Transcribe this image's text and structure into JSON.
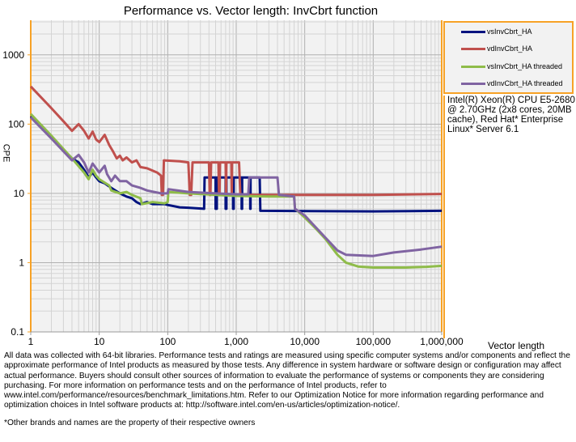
{
  "chart_data": {
    "type": "line",
    "title": "Performance vs. Vector length: InvCbrt function",
    "xlabel": "Vector length",
    "ylabel": "CPE",
    "xscale": "log",
    "yscale": "log",
    "xlim": [
      1,
      1000000
    ],
    "ylim": [
      0.1,
      3162
    ],
    "xticks": [
      {
        "v": 1,
        "label": "1"
      },
      {
        "v": 10,
        "label": "10"
      },
      {
        "v": 100,
        "label": "100"
      },
      {
        "v": 1000,
        "label": "1,000"
      },
      {
        "v": 10000,
        "label": "10,000"
      },
      {
        "v": 100000,
        "label": "100,000"
      },
      {
        "v": 1000000,
        "label": "1,000,000"
      }
    ],
    "yticks": [
      {
        "v": 0.1,
        "label": "0.1"
      },
      {
        "v": 1,
        "label": "1"
      },
      {
        "v": 10,
        "label": "10"
      },
      {
        "v": 100,
        "label": "100"
      },
      {
        "v": 1000,
        "label": "1000"
      }
    ],
    "grid": true,
    "legend_placement": "right",
    "series": [
      {
        "name": "vsInvCbrt_HA",
        "color": "#00137f",
        "points": [
          [
            1,
            130
          ],
          [
            2,
            65
          ],
          [
            4,
            32
          ],
          [
            5,
            28
          ],
          [
            6,
            22
          ],
          [
            7,
            17
          ],
          [
            8,
            20
          ],
          [
            9,
            17
          ],
          [
            10,
            15
          ],
          [
            12,
            14
          ],
          [
            15,
            12
          ],
          [
            20,
            10
          ],
          [
            25,
            9
          ],
          [
            30,
            8.5
          ],
          [
            35,
            7.5
          ],
          [
            40,
            7
          ],
          [
            50,
            7.5
          ],
          [
            60,
            7
          ],
          [
            90,
            7
          ],
          [
            100,
            6.8
          ],
          [
            150,
            6.3
          ],
          [
            200,
            6.2
          ],
          [
            340,
            6
          ],
          [
            345,
            17
          ],
          [
            500,
            17
          ],
          [
            500,
            6
          ],
          [
            520,
            6
          ],
          [
            520,
            17
          ],
          [
            700,
            17
          ],
          [
            700,
            6
          ],
          [
            720,
            6
          ],
          [
            720,
            17
          ],
          [
            900,
            17
          ],
          [
            900,
            6
          ],
          [
            920,
            6
          ],
          [
            920,
            17
          ],
          [
            1200,
            17
          ],
          [
            1200,
            6
          ],
          [
            1220,
            6
          ],
          [
            1220,
            17
          ],
          [
            1600,
            17
          ],
          [
            1600,
            6
          ],
          [
            1620,
            6
          ],
          [
            1620,
            17
          ],
          [
            2200,
            17
          ],
          [
            2250,
            5.6
          ],
          [
            100000,
            5.5
          ],
          [
            1000000,
            5.6
          ]
        ]
      },
      {
        "name": "vdInvCbrt_HA",
        "color": "#c0504d",
        "points": [
          [
            1,
            350
          ],
          [
            2,
            170
          ],
          [
            3,
            110
          ],
          [
            4,
            80
          ],
          [
            5,
            100
          ],
          [
            6,
            80
          ],
          [
            7,
            62
          ],
          [
            8,
            78
          ],
          [
            9,
            60
          ],
          [
            10,
            55
          ],
          [
            12,
            70
          ],
          [
            14,
            50
          ],
          [
            16,
            40
          ],
          [
            18,
            32
          ],
          [
            20,
            35
          ],
          [
            22,
            30
          ],
          [
            25,
            33
          ],
          [
            30,
            28
          ],
          [
            35,
            30
          ],
          [
            40,
            24
          ],
          [
            50,
            23
          ],
          [
            70,
            20
          ],
          [
            80,
            18
          ],
          [
            82,
            9.5
          ],
          [
            85,
            9.5
          ],
          [
            88,
            30
          ],
          [
            150,
            29
          ],
          [
            200,
            28
          ],
          [
            210,
            9.5
          ],
          [
            220,
            9.5
          ],
          [
            230,
            28
          ],
          [
            400,
            28
          ],
          [
            410,
            9.5
          ],
          [
            420,
            9.5
          ],
          [
            430,
            28
          ],
          [
            550,
            28
          ],
          [
            560,
            9.5
          ],
          [
            570,
            9.5
          ],
          [
            580,
            28
          ],
          [
            700,
            28
          ],
          [
            710,
            9.5
          ],
          [
            720,
            28
          ],
          [
            850,
            28
          ],
          [
            860,
            9.5
          ],
          [
            870,
            28
          ],
          [
            1100,
            28
          ],
          [
            1150,
            9.5
          ],
          [
            100000,
            9.5
          ],
          [
            1000000,
            9.8
          ]
        ]
      },
      {
        "name": "vsInvCbrt_HA threaded",
        "color": "#8fbc4a",
        "points": [
          [
            1,
            140
          ],
          [
            2,
            68
          ],
          [
            4,
            32
          ],
          [
            6,
            20
          ],
          [
            7,
            16
          ],
          [
            8,
            22
          ],
          [
            9,
            18
          ],
          [
            10,
            16
          ],
          [
            14,
            13
          ],
          [
            15,
            11
          ],
          [
            20,
            10
          ],
          [
            25,
            10.5
          ],
          [
            30,
            9.5
          ],
          [
            40,
            8.5
          ],
          [
            42,
            7
          ],
          [
            60,
            7.5
          ],
          [
            90,
            7.2
          ],
          [
            100,
            7.5
          ],
          [
            102,
            10.5
          ],
          [
            200,
            10
          ],
          [
            1000,
            9.2
          ],
          [
            3000,
            9
          ],
          [
            7000,
            9
          ],
          [
            7200,
            6
          ],
          [
            8000,
            5.5
          ],
          [
            10000,
            4.5
          ],
          [
            15000,
            3
          ],
          [
            20000,
            2.2
          ],
          [
            30000,
            1.3
          ],
          [
            40000,
            1
          ],
          [
            60000,
            0.88
          ],
          [
            100000,
            0.85
          ],
          [
            300000,
            0.85
          ],
          [
            600000,
            0.87
          ],
          [
            1000000,
            0.9
          ]
        ]
      },
      {
        "name": "vdInvCbrt_HA threaded",
        "color": "#8064a2",
        "points": [
          [
            1,
            125
          ],
          [
            2,
            62
          ],
          [
            4,
            30
          ],
          [
            5,
            36
          ],
          [
            6,
            28
          ],
          [
            7,
            20
          ],
          [
            8,
            27
          ],
          [
            9,
            23
          ],
          [
            10,
            20
          ],
          [
            12,
            25
          ],
          [
            13,
            19
          ],
          [
            15,
            15
          ],
          [
            17,
            18
          ],
          [
            20,
            15
          ],
          [
            25,
            15
          ],
          [
            30,
            13
          ],
          [
            40,
            12
          ],
          [
            50,
            11
          ],
          [
            80,
            10
          ],
          [
            100,
            10
          ],
          [
            102,
            11.5
          ],
          [
            200,
            10.5
          ],
          [
            500,
            10
          ],
          [
            1000,
            9.7
          ],
          [
            1500,
            9.7
          ],
          [
            1550,
            17
          ],
          [
            4000,
            17
          ],
          [
            4200,
            9.5
          ],
          [
            7000,
            9
          ],
          [
            7200,
            6
          ],
          [
            10000,
            4.8
          ],
          [
            20000,
            2.3
          ],
          [
            30000,
            1.5
          ],
          [
            40000,
            1.3
          ],
          [
            100000,
            1.25
          ],
          [
            200000,
            1.4
          ],
          [
            500000,
            1.55
          ],
          [
            1000000,
            1.7
          ]
        ]
      }
    ]
  },
  "system_info": "Intel(R) Xeon(R) CPU E5-2680 @ 2.70GHz (2x8 cores, 20MB cache), Red Hat* Enterprise Linux* Server 6.1",
  "notes": "All data was collected with 64-bit libraries. Performance tests and ratings are measured using specific computer systems and/or components and reflect the approximate performance of Intel products as measured by those tests. Any difference in system hardware or software design or configuration may affect actual performance. Buyers should consult other sources of information to evaluate the performance of systems or components they are considering purchasing. For more information on performance tests and on the performance of Intel products, refer to www.intel.com/performance/resources/benchmark_limitations.htm. Refer to our Optimization Notice for more information regarding performance and optimization choices in Intel software products at: http://software.intel.com/en-us/articles/optimization-notice/.",
  "owners_note": "*Other brands and names are the property of their respective owners"
}
